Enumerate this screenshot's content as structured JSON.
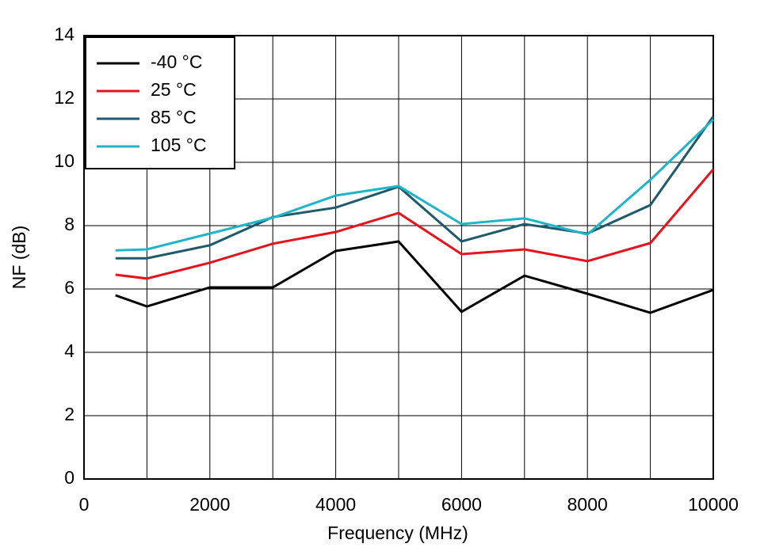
{
  "chart_data": {
    "type": "line",
    "x_label": "Frequency (MHz)",
    "y_label": "NF (dB)",
    "x": [
      500,
      1000,
      2000,
      3000,
      4000,
      5000,
      6000,
      7000,
      8000,
      9000,
      10000
    ],
    "series": [
      {
        "name": "-40 °C",
        "color": "#000000",
        "values": [
          5.8,
          5.45,
          6.05,
          6.05,
          7.2,
          7.5,
          5.28,
          6.42,
          5.85,
          5.25,
          5.97
        ]
      },
      {
        "name": "25 °C",
        "color": "#e8121c",
        "values": [
          6.45,
          6.33,
          6.83,
          7.43,
          7.8,
          8.4,
          7.1,
          7.25,
          6.88,
          7.45,
          9.78
        ]
      },
      {
        "name": "85 °C",
        "color": "#1f5a6b",
        "values": [
          6.97,
          6.97,
          7.38,
          8.27,
          8.57,
          9.23,
          7.5,
          8.05,
          7.75,
          8.65,
          11.45
        ]
      },
      {
        "name": "105 °C",
        "color": "#1fb5c9",
        "values": [
          7.22,
          7.25,
          7.75,
          8.25,
          8.95,
          9.25,
          8.05,
          8.23,
          7.72,
          9.45,
          11.35
        ]
      }
    ],
    "xlim": [
      0,
      10000
    ],
    "xticks": [
      0,
      2000,
      4000,
      6000,
      8000,
      10000
    ],
    "x_minor_grid": [
      1000,
      3000,
      5000,
      7000,
      9000
    ],
    "ylim": [
      0,
      14
    ],
    "yticks": [
      0,
      2,
      4,
      6,
      8,
      10,
      12,
      14
    ],
    "grid": true,
    "legend": "upper-left"
  }
}
